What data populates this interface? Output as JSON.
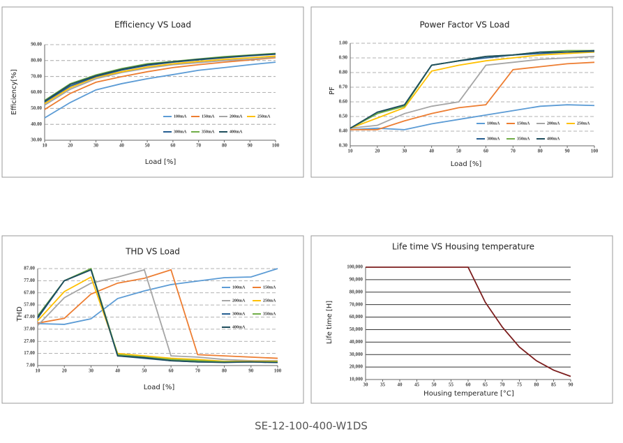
{
  "chart_data": [
    {
      "type": "line",
      "title": "Efficiency VS Load",
      "xlabel": "Load [%]",
      "ylabel": "Efficiency[%]",
      "x": [
        10,
        20,
        30,
        40,
        50,
        60,
        70,
        80,
        90,
        100
      ],
      "xlim": [
        10,
        100
      ],
      "xticks": [
        10,
        20,
        30,
        40,
        50,
        60,
        70,
        80,
        90,
        100
      ],
      "ylim": [
        30,
        90
      ],
      "yticks": [
        {
          "value": 30,
          "label": "30.00"
        },
        {
          "value": 40,
          "label": "40.00"
        },
        {
          "value": 50,
          "label": "50.00"
        },
        {
          "value": 60,
          "label": "60.00"
        },
        {
          "value": 70,
          "label": "70.00"
        },
        {
          "value": 80,
          "label": "80.00"
        },
        {
          "value": 90,
          "label": "90.00"
        }
      ],
      "grid": "dashed",
      "legend": "lower right",
      "series": [
        {
          "name": "100mA",
          "color": "#5b9bd5",
          "values": [
            44,
            53.7,
            61.6,
            65.5,
            68.6,
            71.2,
            73.9,
            75.6,
            77.4,
            79
          ]
        },
        {
          "name": "150mA",
          "color": "#ed7d31",
          "values": [
            49.3,
            59.4,
            66.4,
            69.9,
            73,
            75.6,
            77.4,
            79,
            80.4,
            81.8
          ]
        },
        {
          "name": "200mA",
          "color": "#a5a5a5",
          "values": [
            52,
            62,
            68.6,
            72.5,
            75.2,
            77.4,
            78.7,
            80,
            80.9,
            82.2
          ]
        },
        {
          "name": "250mA",
          "color": "#ffc000",
          "values": [
            53,
            63,
            69.5,
            73,
            76,
            78,
            79.5,
            80.8,
            81.8,
            82.8
          ]
        },
        {
          "name": "300mA",
          "color": "#255e91",
          "values": [
            54,
            64,
            70,
            74,
            77,
            79,
            80.5,
            81.8,
            83,
            84
          ]
        },
        {
          "name": "350mA",
          "color": "#70ad47",
          "values": [
            55,
            65.5,
            71,
            75,
            78,
            79.5,
            81,
            82.5,
            83.5,
            84.5
          ]
        },
        {
          "name": "400mA",
          "color": "#1e4d5c",
          "values": [
            54.5,
            65,
            70.5,
            74.5,
            77.5,
            79.2,
            80.8,
            82,
            83.2,
            84.2
          ]
        }
      ]
    },
    {
      "type": "line",
      "title": "Power Factor VS Load",
      "xlabel": "Load [%]",
      "ylabel": "PF",
      "x": [
        10,
        20,
        30,
        40,
        50,
        60,
        70,
        80,
        90,
        100
      ],
      "xlim": [
        10,
        100
      ],
      "xticks": [
        10,
        20,
        30,
        40,
        50,
        60,
        70,
        80,
        90,
        100
      ],
      "ylim": [
        0.3,
        1.0
      ],
      "yticks": [
        {
          "value": 0.3,
          "label": "0.30"
        },
        {
          "value": 0.4,
          "label": "0.40"
        },
        {
          "value": 0.5,
          "label": "0.50"
        },
        {
          "value": 0.6,
          "label": "0.60"
        },
        {
          "value": 0.7,
          "label": "0.70"
        },
        {
          "value": 0.8,
          "label": "0.80"
        },
        {
          "value": 0.9,
          "label": "0.90"
        },
        {
          "value": 1.0,
          "label": "1.00"
        }
      ],
      "grid": "dashed",
      "legend": "lower right",
      "series": [
        {
          "name": "100mA",
          "color": "#5b9bd5",
          "values": [
            0.41,
            0.42,
            0.41,
            0.45,
            0.48,
            0.51,
            0.54,
            0.57,
            0.58,
            0.575
          ]
        },
        {
          "name": "150mA",
          "color": "#ed7d31",
          "values": [
            0.41,
            0.41,
            0.47,
            0.52,
            0.56,
            0.58,
            0.82,
            0.84,
            0.86,
            0.87
          ]
        },
        {
          "name": "200mA",
          "color": "#a5a5a5",
          "values": [
            0.42,
            0.44,
            0.52,
            0.57,
            0.6,
            0.85,
            0.87,
            0.89,
            0.9,
            0.91
          ]
        },
        {
          "name": "250mA",
          "color": "#ffc000",
          "values": [
            0.42,
            0.49,
            0.56,
            0.81,
            0.85,
            0.88,
            0.9,
            0.92,
            0.93,
            0.94
          ]
        },
        {
          "name": "300mA",
          "color": "#255e91",
          "values": [
            0.42,
            0.52,
            0.58,
            0.85,
            0.88,
            0.9,
            0.92,
            0.93,
            0.94,
            0.945
          ]
        },
        {
          "name": "350mA",
          "color": "#70ad47",
          "values": [
            0.42,
            0.52,
            0.57,
            0.85,
            0.88,
            0.91,
            0.92,
            0.94,
            0.95,
            0.95
          ]
        },
        {
          "name": "400mA",
          "color": "#1e4d5c",
          "values": [
            0.42,
            0.53,
            0.58,
            0.85,
            0.88,
            0.91,
            0.92,
            0.94,
            0.94,
            0.95
          ]
        }
      ]
    },
    {
      "type": "line",
      "title": "THD VS Load",
      "xlabel": "Load [%]",
      "ylabel": "THD",
      "x": [
        10,
        20,
        30,
        40,
        50,
        60,
        70,
        80,
        90,
        100
      ],
      "xlim": [
        10,
        100
      ],
      "xticks": [
        10,
        20,
        30,
        40,
        50,
        60,
        70,
        80,
        90,
        100
      ],
      "ylim": [
        7,
        87
      ],
      "yticks": [
        {
          "value": 7,
          "label": "7.00"
        },
        {
          "value": 17,
          "label": "17.00"
        },
        {
          "value": 27,
          "label": "27.00"
        },
        {
          "value": 37,
          "label": "37.00"
        },
        {
          "value": 47,
          "label": "47.00"
        },
        {
          "value": 57,
          "label": "57.00"
        },
        {
          "value": 67,
          "label": "67.00"
        },
        {
          "value": 77,
          "label": "77.00"
        },
        {
          "value": 87,
          "label": "87.00"
        }
      ],
      "grid": "dashed",
      "legend": "right",
      "series": [
        {
          "name": "100mA",
          "color": "#5b9bd5",
          "values": [
            41.6,
            41,
            45.6,
            62.3,
            68.6,
            73.8,
            76.7,
            79.5,
            80.1,
            87
          ]
        },
        {
          "name": "150mA",
          "color": "#ed7d31",
          "values": [
            42,
            46,
            66,
            75,
            79,
            86,
            16,
            15,
            14,
            13
          ]
        },
        {
          "name": "200mA",
          "color": "#a5a5a5",
          "values": [
            40,
            63,
            75,
            80,
            86,
            15,
            14,
            12,
            11,
            11
          ]
        },
        {
          "name": "250mA",
          "color": "#ffc000",
          "values": [
            44,
            68,
            80,
            17,
            15,
            13,
            12,
            10.5,
            10.5,
            10.5
          ]
        },
        {
          "name": "300mA",
          "color": "#255e91",
          "values": [
            46,
            77,
            86,
            15,
            13,
            11,
            10,
            10,
            10,
            9.5
          ]
        },
        {
          "name": "350mA",
          "color": "#70ad47",
          "values": [
            48,
            77,
            87,
            16,
            14,
            12,
            11,
            10,
            10,
            10
          ]
        },
        {
          "name": "400mA",
          "color": "#1e4d5c",
          "values": [
            47,
            77,
            86,
            15,
            13.5,
            11,
            10,
            9.5,
            10,
            9.5
          ]
        }
      ]
    },
    {
      "type": "line",
      "title": "Life time VS Housing temperature",
      "xlabel": "Housing temperature [°C]",
      "ylabel": "Life time [H]",
      "x": [
        30,
        60,
        65,
        70,
        75,
        80,
        85,
        90
      ],
      "xlim": [
        30,
        90
      ],
      "xticks": [
        30,
        35,
        40,
        45,
        50,
        55,
        60,
        65,
        70,
        75,
        80,
        85,
        90
      ],
      "ylim": [
        10000,
        100000
      ],
      "yticks": [
        {
          "value": 10000,
          "label": "10,000"
        },
        {
          "value": 20000,
          "label": "20,000"
        },
        {
          "value": 30000,
          "label": "30,000"
        },
        {
          "value": 40000,
          "label": "40,000"
        },
        {
          "value": 50000,
          "label": "50,000"
        },
        {
          "value": 60000,
          "label": "60,000"
        },
        {
          "value": 70000,
          "label": "70,000"
        },
        {
          "value": 80000,
          "label": "80,000"
        },
        {
          "value": 90000,
          "label": "90,000"
        },
        {
          "value": 100000,
          "label": "100,000"
        }
      ],
      "grid": "solid",
      "series": [
        {
          "color": "#7b1c1c",
          "values": [
            100000,
            100000,
            72000,
            52000,
            36000,
            25000,
            17500,
            12500
          ]
        }
      ]
    }
  ],
  "footer": "SE-12-100-400-W1DS"
}
